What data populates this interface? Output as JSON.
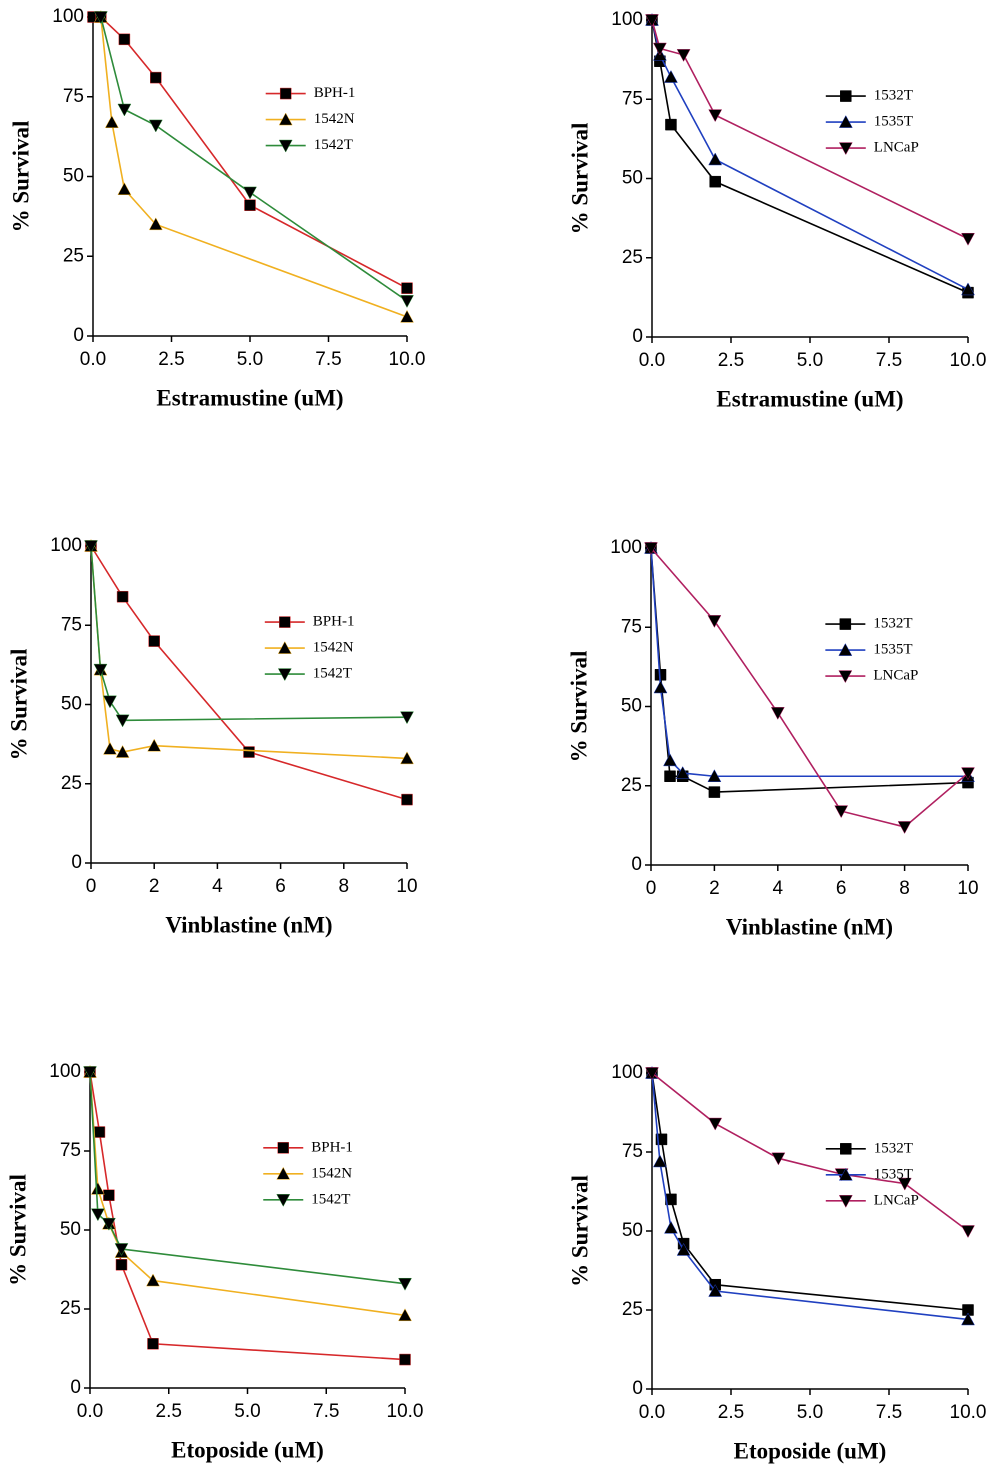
{
  "chart_data": [
    {
      "type": "line",
      "xlabel": "Estramustine (uM)",
      "ylabel": "% Survival",
      "xlim": [
        0,
        10
      ],
      "ylim": [
        0,
        100
      ],
      "xticks": [
        {
          "value": 0,
          "label": "0.0"
        },
        2.5,
        {
          "value": 5,
          "label": "5.0"
        },
        7.5,
        {
          "value": 10,
          "label": "10.0"
        }
      ],
      "yticks": [
        0,
        25,
        50,
        75,
        100
      ],
      "legend": "upper right",
      "series": [
        {
          "name": "BPH-1",
          "color": "#d6282a",
          "marker": "square",
          "x": [
            0,
            0.25,
            1,
            2,
            5,
            10
          ],
          "values": [
            100,
            100,
            93,
            81,
            41,
            15
          ]
        },
        {
          "name": "1542N",
          "color": "#f0b020",
          "marker": "triangle-up",
          "x": [
            0.25,
            0.6,
            1,
            2,
            10
          ],
          "values": [
            100,
            67,
            46,
            35,
            6
          ]
        },
        {
          "name": "1542T",
          "color": "#2e8b3a",
          "marker": "triangle-down",
          "x": [
            0.25,
            1,
            2,
            5,
            10
          ],
          "values": [
            100,
            71,
            66,
            45,
            11
          ]
        }
      ]
    },
    {
      "type": "line",
      "xlabel": "Estramustine (uM)",
      "ylabel": "% Survival",
      "xlim": [
        0,
        10
      ],
      "ylim": [
        0,
        100
      ],
      "xticks": [
        {
          "value": 0,
          "label": "0.0"
        },
        2.5,
        {
          "value": 5,
          "label": "5.0"
        },
        7.5,
        {
          "value": 10,
          "label": "10.0"
        }
      ],
      "yticks": [
        0,
        25,
        50,
        75,
        100
      ],
      "legend": "upper right",
      "series": [
        {
          "name": "1532T",
          "color": "#000000",
          "marker": "square",
          "x": [
            0,
            0.25,
            0.6,
            2,
            10
          ],
          "values": [
            100,
            87,
            67,
            49,
            14
          ]
        },
        {
          "name": "1535T",
          "color": "#2040c0",
          "marker": "triangle-up",
          "x": [
            0,
            0.25,
            0.6,
            2,
            10
          ],
          "values": [
            100,
            89,
            82,
            56,
            15
          ]
        },
        {
          "name": "LNCaP",
          "color": "#b02060",
          "marker": "triangle-down",
          "x": [
            0,
            0.25,
            1,
            2,
            10
          ],
          "values": [
            100,
            91,
            89,
            70,
            31
          ]
        }
      ]
    },
    {
      "type": "line",
      "xlabel": "Vinblastine (nM)",
      "ylabel": "% Survival",
      "xlim": [
        0,
        10
      ],
      "ylim": [
        0,
        100
      ],
      "xticks": [
        0,
        2,
        4,
        6,
        8,
        10
      ],
      "yticks": [
        0,
        25,
        50,
        75,
        100
      ],
      "legend": "upper right",
      "series": [
        {
          "name": "BPH-1",
          "color": "#d6282a",
          "marker": "square",
          "x": [
            0,
            1,
            2,
            5,
            10
          ],
          "values": [
            100,
            84,
            70,
            35,
            20
          ]
        },
        {
          "name": "1542N",
          "color": "#f0b020",
          "marker": "triangle-up",
          "x": [
            0,
            0.3,
            0.6,
            1,
            2,
            10
          ],
          "values": [
            100,
            61,
            36,
            35,
            37,
            33
          ]
        },
        {
          "name": "1542T",
          "color": "#2e8b3a",
          "marker": "triangle-down",
          "x": [
            0,
            0.3,
            0.6,
            1,
            10
          ],
          "values": [
            100,
            61,
            51,
            45,
            46
          ]
        }
      ]
    },
    {
      "type": "line",
      "xlabel": "Vinblastine (nM)",
      "ylabel": "% Survival",
      "xlim": [
        0,
        10
      ],
      "ylim": [
        0,
        100
      ],
      "xticks": [
        0,
        2,
        4,
        6,
        8,
        10
      ],
      "yticks": [
        0,
        25,
        50,
        75,
        100
      ],
      "legend": "upper right",
      "series": [
        {
          "name": "1532T",
          "color": "#000000",
          "marker": "square",
          "x": [
            0,
            0.3,
            0.6,
            1,
            2,
            10
          ],
          "values": [
            100,
            60,
            28,
            28,
            23,
            26
          ]
        },
        {
          "name": "1535T",
          "color": "#2040c0",
          "marker": "triangle-up",
          "x": [
            0,
            0.3,
            0.6,
            1,
            2,
            10
          ],
          "values": [
            100,
            56,
            33,
            29,
            28,
            28
          ]
        },
        {
          "name": "LNCaP",
          "color": "#b02060",
          "marker": "triangle-down",
          "x": [
            0,
            2,
            4,
            6,
            8,
            10
          ],
          "values": [
            100,
            77,
            48,
            17,
            12,
            29
          ]
        }
      ]
    },
    {
      "type": "line",
      "xlabel": "Etoposide (uM)",
      "ylabel": "% Survival",
      "xlim": [
        0,
        10
      ],
      "ylim": [
        0,
        100
      ],
      "xticks": [
        {
          "value": 0,
          "label": "0.0"
        },
        2.5,
        {
          "value": 5,
          "label": "5.0"
        },
        7.5,
        {
          "value": 10,
          "label": "10.0"
        }
      ],
      "yticks": [
        0,
        25,
        50,
        75,
        100
      ],
      "legend": "upper right",
      "series": [
        {
          "name": "BPH-1",
          "color": "#d6282a",
          "marker": "square",
          "x": [
            0,
            0.3,
            0.6,
            1,
            2,
            10
          ],
          "values": [
            100,
            81,
            61,
            39,
            14,
            9
          ]
        },
        {
          "name": "1542N",
          "color": "#f0b020",
          "marker": "triangle-up",
          "x": [
            0,
            0.25,
            0.6,
            1,
            2,
            10
          ],
          "values": [
            100,
            63,
            52,
            43,
            34,
            23
          ]
        },
        {
          "name": "1542T",
          "color": "#2e8b3a",
          "marker": "triangle-down",
          "x": [
            0,
            0.25,
            0.6,
            1,
            10
          ],
          "values": [
            100,
            55,
            52,
            44,
            33
          ]
        }
      ]
    },
    {
      "type": "line",
      "xlabel": "Etoposide (uM)",
      "ylabel": "% Survival",
      "xlim": [
        0,
        10
      ],
      "ylim": [
        0,
        100
      ],
      "xticks": [
        {
          "value": 0,
          "label": "0.0"
        },
        2.5,
        {
          "value": 5,
          "label": "5.0"
        },
        7.5,
        {
          "value": 10,
          "label": "10.0"
        }
      ],
      "yticks": [
        0,
        25,
        50,
        75,
        100
      ],
      "legend": "upper right",
      "series": [
        {
          "name": "1532T",
          "color": "#000000",
          "marker": "square",
          "x": [
            0,
            0.3,
            0.6,
            1,
            2,
            10
          ],
          "values": [
            100,
            79,
            60,
            46,
            33,
            25
          ]
        },
        {
          "name": "1535T",
          "color": "#2040c0",
          "marker": "triangle-up",
          "x": [
            0,
            0.25,
            0.6,
            1,
            2,
            10
          ],
          "values": [
            100,
            72,
            51,
            44,
            31,
            22
          ]
        },
        {
          "name": "LNCaP",
          "color": "#b02060",
          "marker": "triangle-down",
          "x": [
            0,
            2,
            4,
            6,
            8,
            10
          ],
          "values": [
            100,
            84,
            73,
            68,
            65,
            50
          ]
        }
      ]
    }
  ]
}
